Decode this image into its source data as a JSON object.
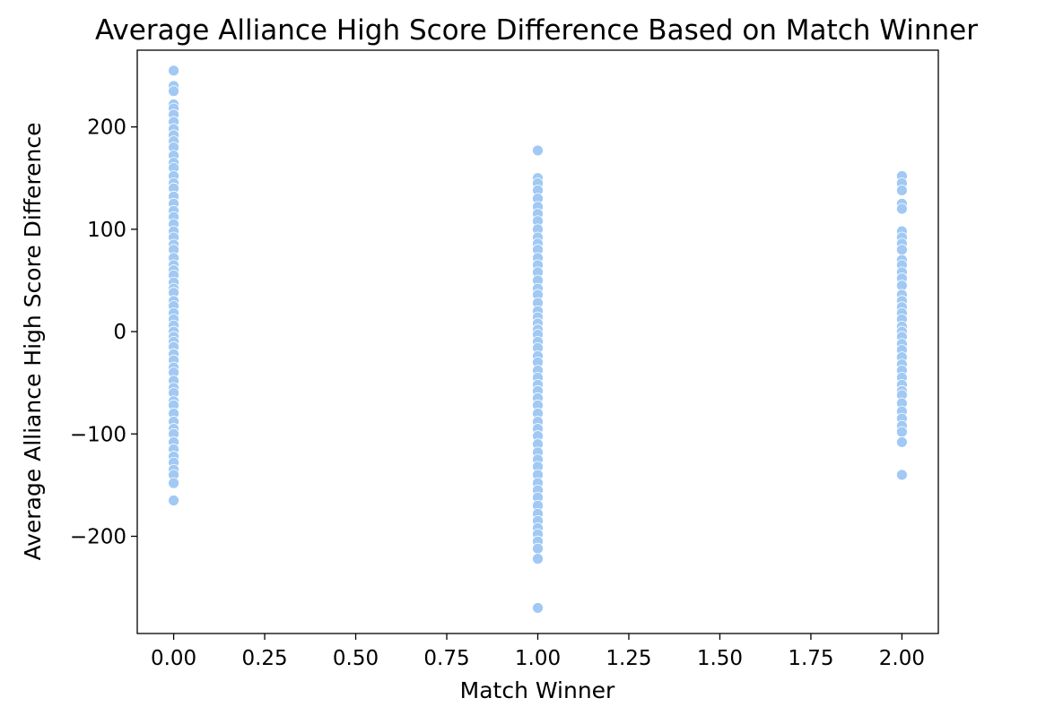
{
  "chart_data": {
    "type": "scatter",
    "title": "Average Alliance High Score Difference Based on Match Winner",
    "xlabel": "Match Winner",
    "ylabel": "Average Alliance High Score Difference",
    "xlim": [
      -0.1,
      2.1
    ],
    "ylim": [
      -295,
      275
    ],
    "xticks": [
      0.0,
      0.25,
      0.5,
      0.75,
      1.0,
      1.25,
      1.5,
      1.75,
      2.0
    ],
    "xtick_labels": [
      "0.00",
      "0.25",
      "0.50",
      "0.75",
      "1.00",
      "1.25",
      "1.50",
      "1.75",
      "2.00"
    ],
    "yticks": [
      -200,
      -100,
      0,
      100,
      200
    ],
    "ytick_labels": [
      "−200",
      "−100",
      "0",
      "100",
      "200"
    ],
    "grid": false,
    "point_color": "#a1c9f4",
    "series": [
      {
        "x": 0,
        "values": [
          255,
          240,
          235,
          222,
          218,
          212,
          205,
          198,
          192,
          186,
          180,
          172,
          165,
          160,
          152,
          145,
          140,
          132,
          125,
          118,
          112,
          105,
          98,
          92,
          85,
          80,
          72,
          65,
          60,
          55,
          48,
          42,
          38,
          30,
          25,
          18,
          12,
          6,
          0,
          -5,
          -10,
          -15,
          -22,
          -28,
          -35,
          -40,
          -48,
          -55,
          -60,
          -68,
          -72,
          -80,
          -88,
          -95,
          -100,
          -108,
          -115,
          -122,
          -128,
          -135,
          -140,
          -148,
          -165
        ]
      },
      {
        "x": 1,
        "values": [
          177,
          150,
          145,
          138,
          130,
          122,
          115,
          108,
          100,
          92,
          86,
          80,
          72,
          65,
          58,
          50,
          42,
          36,
          28,
          20,
          14,
          8,
          2,
          -3,
          -10,
          -16,
          -24,
          -30,
          -38,
          -45,
          -52,
          -58,
          -65,
          -72,
          -80,
          -88,
          -95,
          -102,
          -110,
          -118,
          -125,
          -132,
          -140,
          -148,
          -155,
          -162,
          -170,
          -178,
          -185,
          -192,
          -198,
          -205,
          -212,
          -222,
          -270
        ]
      },
      {
        "x": 2,
        "values": [
          152,
          145,
          138,
          125,
          120,
          98,
          92,
          86,
          80,
          70,
          65,
          58,
          52,
          45,
          36,
          30,
          24,
          18,
          12,
          5,
          0,
          -5,
          -12,
          -18,
          -25,
          -32,
          -38,
          -45,
          -52,
          -58,
          -62,
          -70,
          -78,
          -85,
          -92,
          -98,
          -108,
          -140
        ]
      }
    ]
  }
}
